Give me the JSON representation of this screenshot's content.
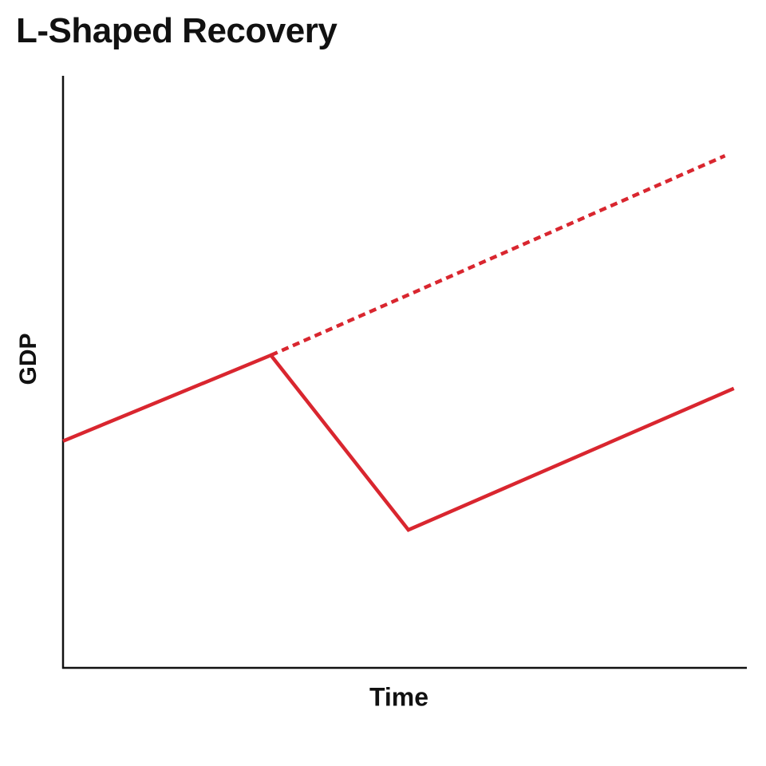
{
  "chart_data": {
    "type": "line",
    "title": "L-Shaped Recovery",
    "xlabel": "Time",
    "ylabel": "GDP",
    "xlim": [
      0,
      100
    ],
    "ylim": [
      0,
      100
    ],
    "grid": false,
    "legend": "none",
    "series": [
      {
        "style": "solid",
        "color": "#d9262f",
        "x": [
          0,
          30.4,
          50.5,
          98.1
        ],
        "y": [
          38.3,
          52.8,
          23.3,
          47.2
        ]
      },
      {
        "style": "dashed",
        "color": "#d9262f",
        "x": [
          30.4,
          96.8
        ],
        "y": [
          52.8,
          86.5
        ]
      }
    ]
  }
}
